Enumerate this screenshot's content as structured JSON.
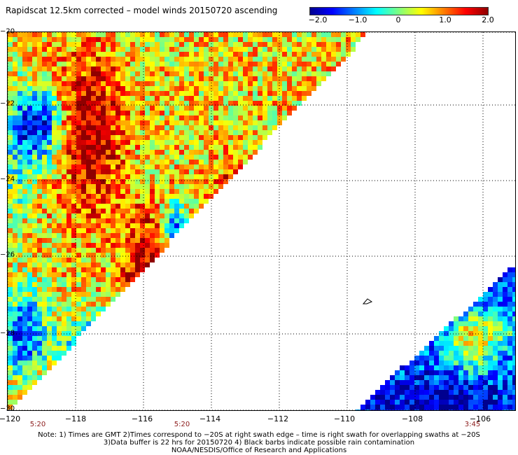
{
  "title": "Rapidscat 12.5km corrected – model winds 20150720 ascending",
  "colorbar": {
    "labels": [
      "−2.0",
      "−1.0",
      "0",
      "1.0",
      "2.0"
    ],
    "stops": [
      "#00008f",
      "#0000ff",
      "#007fff",
      "#00ffff",
      "#7fff7f",
      "#ffff00",
      "#ff7f00",
      "#ff0000",
      "#8f0000"
    ]
  },
  "y_axis": {
    "labels": [
      "−20",
      "−22",
      "−24",
      "−26",
      "−28",
      "−30"
    ]
  },
  "x_axis": {
    "labels": [
      "−120",
      "−118",
      "−116",
      "−114",
      "−112",
      "−110",
      "−108",
      "−106"
    ]
  },
  "swath_times": [
    "5:20",
    "5:20",
    "3:45"
  ],
  "notes": [
    "Note: 1) Times are GMT 2)Times correspond to −20S at right swath edge – time is right swath for overlapping swaths at −20S",
    "3)Data buffer is 22 hrs for 20150720 4) Black barbs indicate possible rain contamination",
    "NOAA/NESDIS/Office of Research and Applications"
  ]
}
